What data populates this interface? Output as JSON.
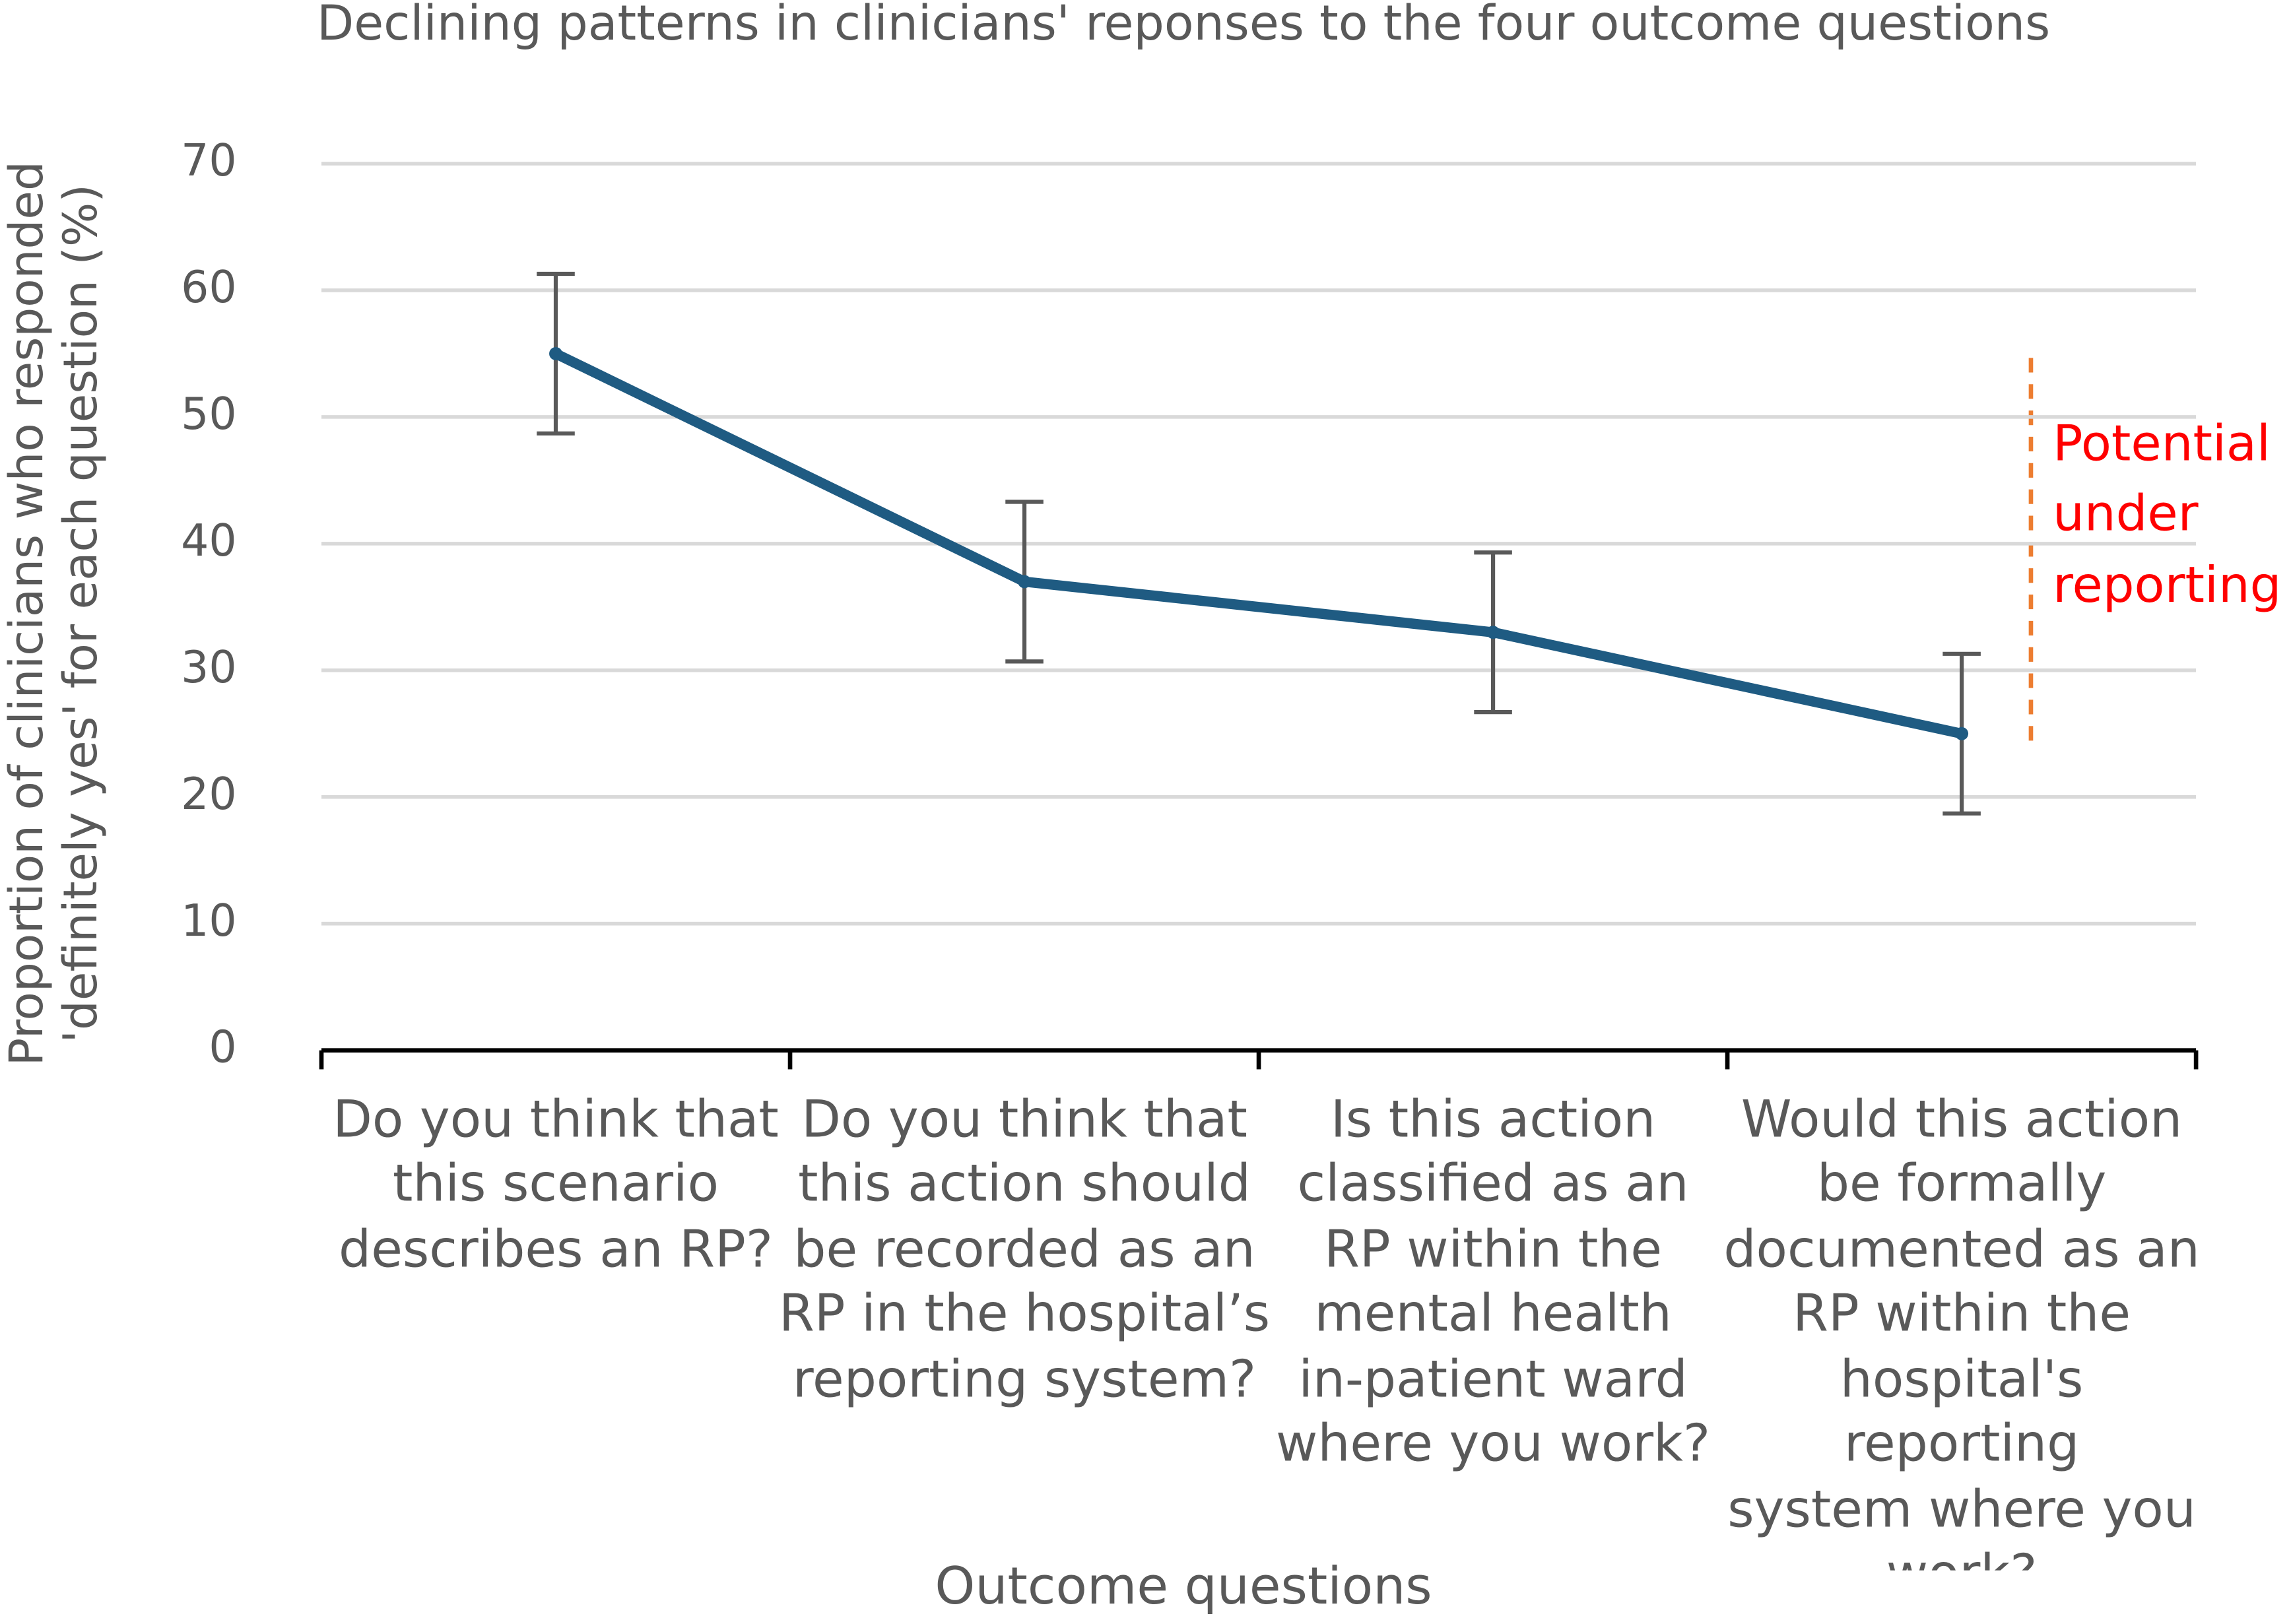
{
  "chart_data": {
    "type": "line",
    "title": "Declining patterns in clinicians' reponses to the four outcome questions",
    "x_label": "Outcome questions",
    "y_label": "Proportion of clinicians who responded\n'definitely yes' for each question (%)",
    "categories": [
      "Do you think that\nthis scenario\ndescribes an RP?",
      "Do you think that\nthis action should\nbe recorded as an\nRP in the hospital’s\nreporting system?",
      "Is this action\nclassified as an\nRP within the\nmental health\nin-patient ward\nwhere you work?",
      "Would this action\nbe formally\ndocumented as an\nRP within the\nhospital's reporting\nsystem where you\nwork?"
    ],
    "series": [
      {
        "color": "#1f5b82",
        "values": [
          55,
          37,
          33,
          25
        ],
        "errors": [
          6.3,
          6.3,
          6.3,
          6.3
        ]
      }
    ],
    "ylim": [
      0,
      70
    ],
    "yticks": [
      0,
      10,
      20,
      30,
      40,
      50,
      60,
      70
    ],
    "grid": true,
    "annotation": "Potential\nunder\nreporting",
    "annotation_color": "#ff0000"
  }
}
